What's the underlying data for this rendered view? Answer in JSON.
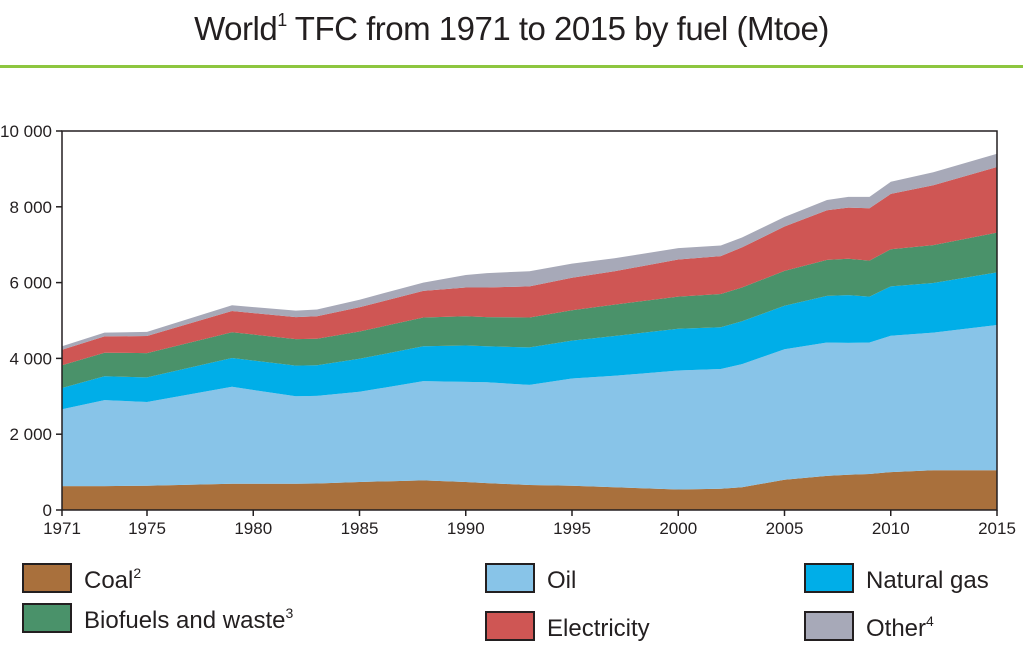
{
  "title": {
    "text": "World",
    "sup": "1",
    "rest": " TFC from 1971 to 2015 by fuel (Mtoe)"
  },
  "legend": [
    {
      "key": "coal",
      "label": "Coal",
      "sup": "2",
      "color": "#a9703c"
    },
    {
      "key": "biofuels",
      "label": "Biofuels and waste",
      "sup": "3",
      "color": "#4a926a"
    },
    {
      "key": "oil",
      "label": "Oil",
      "sup": "",
      "color": "#88c4e8"
    },
    {
      "key": "electricity",
      "label": "Electricity",
      "sup": "",
      "color": "#cf5654"
    },
    {
      "key": "gas",
      "label": "Natural gas",
      "sup": "",
      "color": "#00aee8"
    },
    {
      "key": "other",
      "label": "Other",
      "sup": "4",
      "color": "#a7a9b8"
    }
  ],
  "chart_data": {
    "type": "area",
    "stacked": true,
    "title": "World1 TFC from 1971 to 2015 by fuel (Mtoe)",
    "xlabel": "",
    "ylabel": "",
    "xlim": [
      1971,
      2015
    ],
    "ylim": [
      0,
      10000
    ],
    "x_ticks": [
      1971,
      1975,
      1980,
      1985,
      1990,
      1995,
      2000,
      2005,
      2010,
      2015
    ],
    "y_ticks": [
      0,
      2000,
      4000,
      6000,
      8000,
      10000
    ],
    "y_tick_labels": [
      "0",
      "2 000",
      "4 000",
      "6 000",
      "8 000",
      "10 000"
    ],
    "x": [
      1971,
      1973,
      1975,
      1979,
      1982,
      1983,
      1985,
      1988,
      1990,
      1991,
      1993,
      1995,
      1997,
      2000,
      2002,
      2003,
      2005,
      2007,
      2008,
      2009,
      2010,
      2012,
      2015
    ],
    "series": [
      {
        "name": "Coal",
        "color": "#a9703c",
        "values": [
          630,
          630,
          640,
          690,
          690,
          700,
          740,
          780,
          740,
          710,
          660,
          640,
          600,
          540,
          560,
          600,
          800,
          900,
          930,
          950,
          1000,
          1050,
          1050
        ]
      },
      {
        "name": "Oil",
        "color": "#88c4e8",
        "values": [
          2030,
          2270,
          2210,
          2560,
          2310,
          2310,
          2380,
          2620,
          2640,
          2660,
          2640,
          2830,
          2940,
          3140,
          3160,
          3250,
          3440,
          3520,
          3480,
          3470,
          3600,
          3630,
          3830
        ]
      },
      {
        "name": "Natural gas",
        "color": "#00aee8",
        "values": [
          560,
          630,
          650,
          760,
          810,
          810,
          870,
          920,
          960,
          950,
          990,
          1000,
          1050,
          1100,
          1100,
          1130,
          1150,
          1230,
          1260,
          1210,
          1300,
          1310,
          1390
        ]
      },
      {
        "name": "Biofuels and waste",
        "color": "#4a926a",
        "values": [
          600,
          620,
          640,
          680,
          700,
          700,
          720,
          760,
          770,
          770,
          790,
          800,
          830,
          850,
          880,
          890,
          920,
          950,
          960,
          950,
          980,
          1000,
          1050
        ]
      },
      {
        "name": "Electricity",
        "color": "#cf5654",
        "values": [
          410,
          430,
          450,
          560,
          580,
          590,
          640,
          700,
          760,
          780,
          820,
          860,
          880,
          980,
          1000,
          1060,
          1170,
          1310,
          1350,
          1380,
          1460,
          1580,
          1730
        ]
      },
      {
        "name": "Other",
        "color": "#a7a9b8",
        "values": [
          90,
          100,
          110,
          150,
          170,
          180,
          200,
          220,
          330,
          380,
          400,
          370,
          340,
          300,
          280,
          260,
          250,
          270,
          280,
          300,
          320,
          340,
          350
        ]
      }
    ]
  }
}
